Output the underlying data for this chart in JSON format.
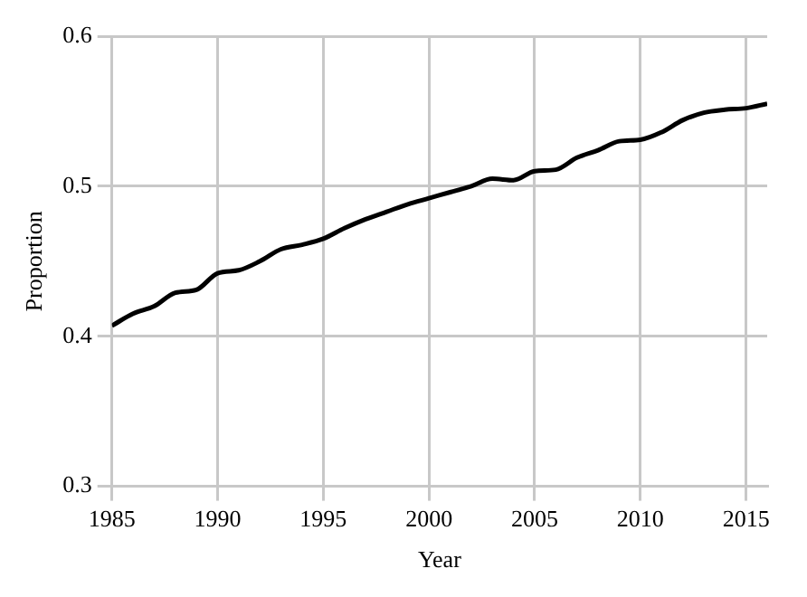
{
  "chart_data": {
    "type": "line",
    "xlabel": "Year",
    "ylabel": "Proportion",
    "x": [
      1985,
      1986,
      1987,
      1988,
      1989,
      1990,
      1991,
      1992,
      1993,
      1994,
      1995,
      1996,
      1997,
      1998,
      1999,
      2000,
      2001,
      2002,
      2003,
      2004,
      2005,
      2006,
      2007,
      2008,
      2009,
      2010,
      2011,
      2012,
      2013,
      2014,
      2015,
      2016
    ],
    "series": [
      {
        "color": "#000000",
        "values": [
          0.407,
          0.415,
          0.42,
          0.429,
          0.431,
          0.442,
          0.444,
          0.45,
          0.458,
          0.461,
          0.465,
          0.472,
          0.478,
          0.483,
          0.488,
          0.492,
          0.496,
          0.5,
          0.505,
          0.504,
          0.51,
          0.511,
          0.519,
          0.524,
          0.53,
          0.531,
          0.536,
          0.544,
          0.549,
          0.551,
          0.552,
          0.555
        ]
      }
    ],
    "xlim": [
      1985,
      2016
    ],
    "xticks": [
      1985,
      1990,
      1995,
      2000,
      2005,
      2010,
      2015
    ],
    "ylim": [
      0.3,
      0.6
    ],
    "yticks": [
      0.3,
      0.4,
      0.5,
      0.6
    ],
    "grid": true,
    "legend": false,
    "marker": "none",
    "line_style": "solid"
  }
}
